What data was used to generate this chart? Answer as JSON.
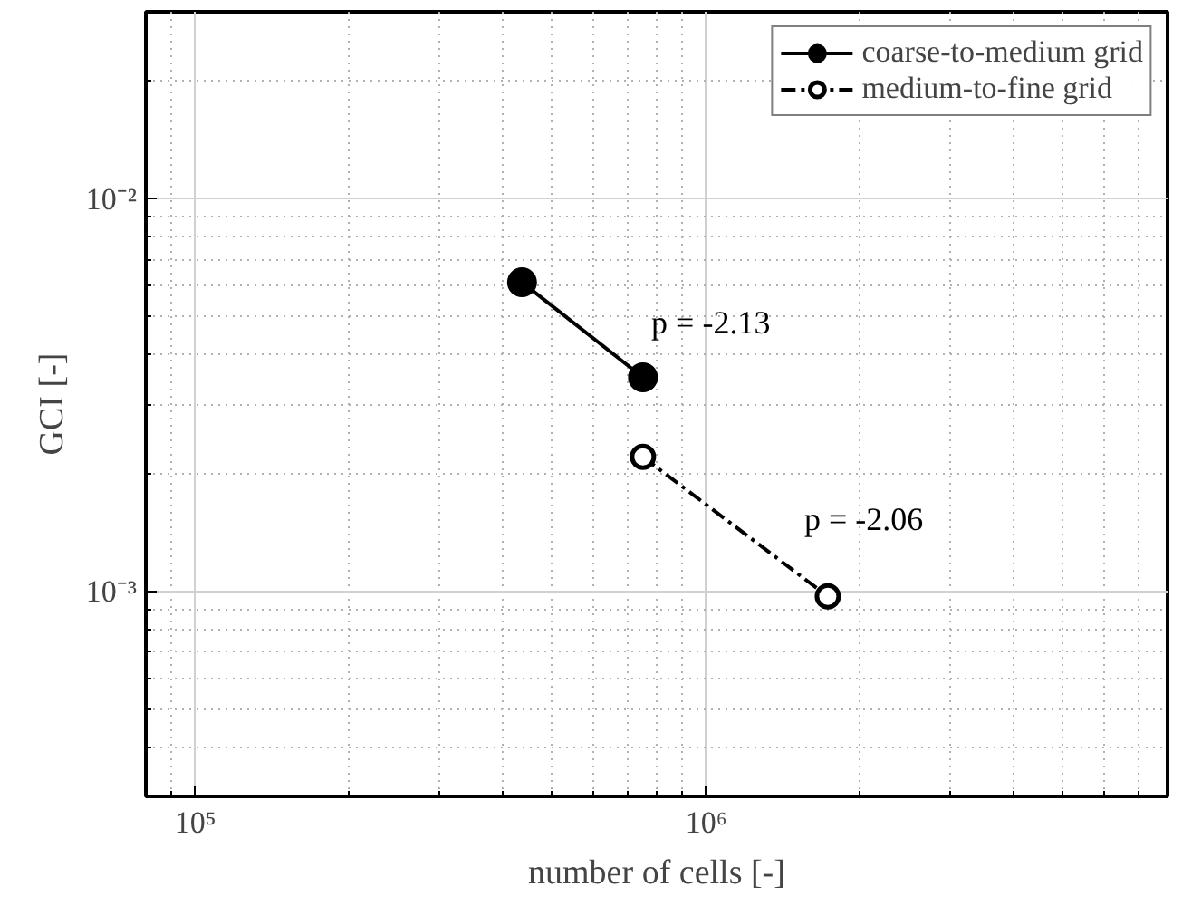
{
  "chart_data": {
    "type": "line",
    "xlabel": "number of cells [-]",
    "ylabel": "GCI [-]",
    "log": "xy",
    "xlim": [
      80000,
      8000000
    ],
    "ylim": [
      0.0003,
      0.03
    ],
    "xticks": [
      {
        "value": 100000,
        "label": "10⁵"
      },
      {
        "value": 1000000,
        "label": "10⁶"
      }
    ],
    "yticks": [
      {
        "value": 0.001,
        "label": "10⁻³"
      },
      {
        "value": 0.01,
        "label": "10⁻²"
      }
    ],
    "grid": true,
    "legend": "top right",
    "series": [
      {
        "name": "coarse-to-medium grid",
        "color": "#000000",
        "x": [
          436000,
          752000
        ],
        "values": [
          0.00613,
          0.00351
        ],
        "marker": "circle",
        "line_style": "solid"
      },
      {
        "name": "medium-to-fine grid",
        "color": "#000000",
        "x": [
          752000,
          1730000
        ],
        "values": [
          0.0022,
          0.00097
        ],
        "marker": "circle",
        "line_style": "dashed"
      }
    ],
    "annotations": [
      "p = -2.13",
      "p = -2.06"
    ]
  }
}
